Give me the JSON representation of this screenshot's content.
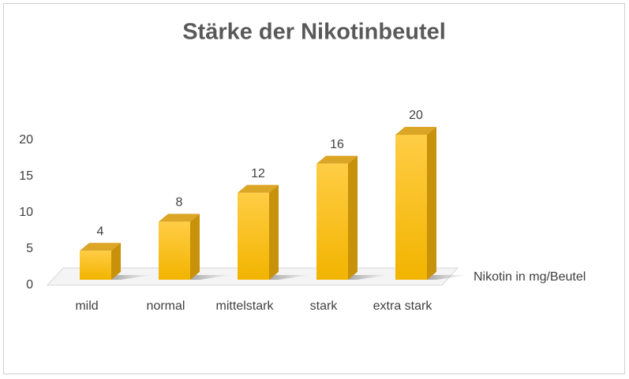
{
  "chart_data": {
    "type": "bar3d",
    "title": "Stärke der Nikotinbeutel",
    "categories": [
      "mild",
      "normal",
      "mittelstark",
      "stark",
      "extra stark"
    ],
    "series": [
      {
        "name": "Nikotin in mg/Beutel",
        "color": "#ffc000",
        "values": [
          4,
          8,
          12,
          16,
          20
        ]
      }
    ],
    "ylim": [
      0,
      20
    ],
    "yticks": [
      0,
      5,
      10,
      15,
      20
    ],
    "data_labels": true
  }
}
